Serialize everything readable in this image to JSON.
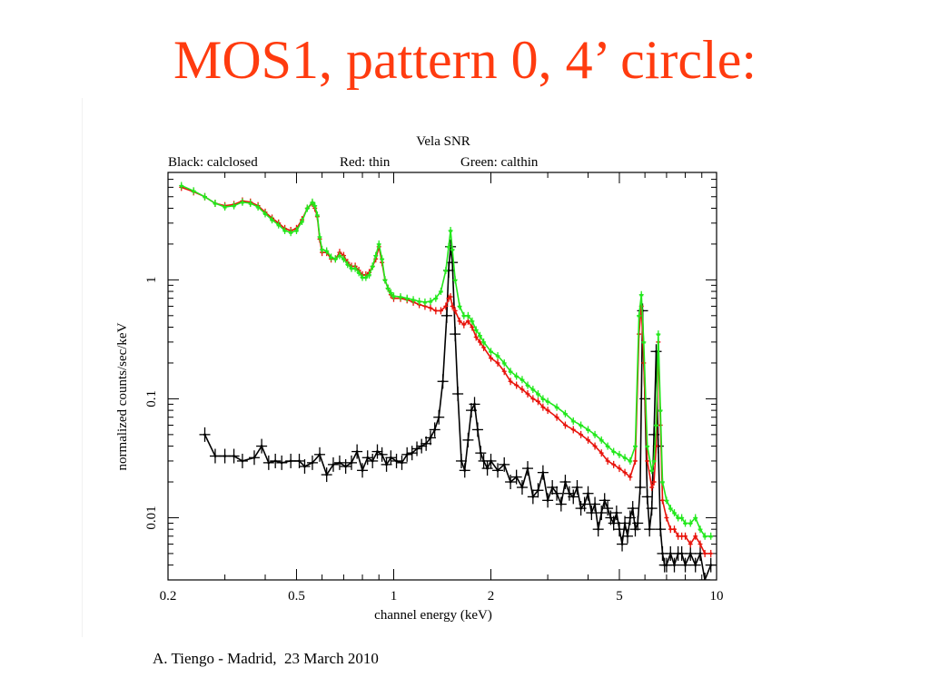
{
  "slide": {
    "title": "MOS1, pattern 0, 4’ circle:",
    "footer": "A. Tiengo - Madrid,  23 March 2010",
    "title_color": "#ff3b0f"
  },
  "chart_data": {
    "type": "line",
    "title": "Vela SNR",
    "legend_texts": [
      "Black: calclosed",
      "Red: thin",
      "Green: calthin"
    ],
    "legend_placement": "top",
    "xlabel": "channel energy (keV)",
    "ylabel": "normalized counts/sec/keV",
    "x_scale": "log",
    "y_scale": "log",
    "xlim": [
      0.2,
      10
    ],
    "ylim": [
      0.003,
      8
    ],
    "x_ticks": [
      {
        "value": 0.2,
        "label": "0.2"
      },
      {
        "value": 0.5,
        "label": "0.5"
      },
      {
        "value": 1,
        "label": "1"
      },
      {
        "value": 2,
        "label": "2"
      },
      {
        "value": 5,
        "label": "5"
      },
      {
        "value": 10,
        "label": "10"
      }
    ],
    "y_ticks": [
      {
        "value": 0.01,
        "label": "0.01"
      },
      {
        "value": 0.1,
        "label": "0.1"
      },
      {
        "value": 1,
        "label": "1"
      }
    ],
    "grid": false,
    "series": [
      {
        "color": "#000000",
        "marker": "cross",
        "x": [
          0.26,
          0.28,
          0.3,
          0.32,
          0.34,
          0.37,
          0.39,
          0.41,
          0.43,
          0.45,
          0.48,
          0.51,
          0.53,
          0.56,
          0.59,
          0.62,
          0.65,
          0.68,
          0.71,
          0.74,
          0.77,
          0.8,
          0.83,
          0.86,
          0.89,
          0.92,
          0.95,
          0.98,
          1.02,
          1.06,
          1.1,
          1.14,
          1.18,
          1.22,
          1.26,
          1.3,
          1.34,
          1.38,
          1.42,
          1.46,
          1.48,
          1.5,
          1.52,
          1.55,
          1.58,
          1.62,
          1.66,
          1.7,
          1.74,
          1.78,
          1.82,
          1.86,
          1.9,
          1.95,
          2.0,
          2.1,
          2.2,
          2.3,
          2.4,
          2.5,
          2.6,
          2.7,
          2.8,
          2.9,
          3.0,
          3.1,
          3.2,
          3.3,
          3.4,
          3.5,
          3.6,
          3.7,
          3.8,
          3.9,
          4.0,
          4.1,
          4.2,
          4.3,
          4.4,
          4.5,
          4.6,
          4.7,
          4.8,
          4.9,
          5.0,
          5.1,
          5.2,
          5.3,
          5.4,
          5.5,
          5.6,
          5.7,
          5.8,
          5.9,
          6.0,
          6.1,
          6.2,
          6.3,
          6.4,
          6.5,
          6.6,
          6.7,
          6.8,
          6.9,
          7.0,
          7.2,
          7.4,
          7.6,
          7.8,
          8.0,
          8.3,
          8.6,
          8.9,
          9.2,
          9.6
        ],
        "y": [
          0.05,
          0.033,
          0.033,
          0.033,
          0.03,
          0.032,
          0.04,
          0.029,
          0.03,
          0.029,
          0.03,
          0.03,
          0.027,
          0.029,
          0.034,
          0.023,
          0.028,
          0.029,
          0.027,
          0.029,
          0.036,
          0.025,
          0.032,
          0.03,
          0.036,
          0.034,
          0.028,
          0.032,
          0.03,
          0.029,
          0.034,
          0.035,
          0.038,
          0.04,
          0.042,
          0.047,
          0.055,
          0.07,
          0.14,
          0.5,
          1.2,
          1.9,
          1.4,
          0.35,
          0.11,
          0.03,
          0.025,
          0.045,
          0.08,
          0.09,
          0.055,
          0.035,
          0.03,
          0.026,
          0.03,
          0.025,
          0.028,
          0.02,
          0.022,
          0.018,
          0.026,
          0.015,
          0.017,
          0.024,
          0.014,
          0.018,
          0.016,
          0.013,
          0.02,
          0.016,
          0.015,
          0.018,
          0.012,
          0.013,
          0.016,
          0.011,
          0.013,
          0.008,
          0.011,
          0.014,
          0.012,
          0.01,
          0.009,
          0.011,
          0.008,
          0.006,
          0.009,
          0.007,
          0.01,
          0.012,
          0.008,
          0.009,
          0.018,
          0.55,
          0.1,
          0.015,
          0.008,
          0.012,
          0.05,
          0.25,
          0.04,
          0.008,
          0.005,
          0.004,
          0.004,
          0.005,
          0.004,
          0.005,
          0.005,
          0.004,
          0.005,
          0.004,
          0.005,
          0.003,
          0.004
        ]
      },
      {
        "color": "#e8140c",
        "marker": "cross",
        "x": [
          0.22,
          0.24,
          0.26,
          0.28,
          0.3,
          0.32,
          0.34,
          0.36,
          0.38,
          0.4,
          0.42,
          0.44,
          0.46,
          0.48,
          0.5,
          0.52,
          0.54,
          0.56,
          0.57,
          0.58,
          0.59,
          0.6,
          0.62,
          0.64,
          0.66,
          0.68,
          0.7,
          0.72,
          0.74,
          0.76,
          0.78,
          0.8,
          0.82,
          0.84,
          0.86,
          0.88,
          0.9,
          0.92,
          0.94,
          0.96,
          0.98,
          1.0,
          1.05,
          1.1,
          1.15,
          1.2,
          1.25,
          1.3,
          1.35,
          1.4,
          1.45,
          1.48,
          1.5,
          1.52,
          1.55,
          1.6,
          1.65,
          1.7,
          1.75,
          1.8,
          1.85,
          1.9,
          2.0,
          2.1,
          2.2,
          2.3,
          2.4,
          2.5,
          2.6,
          2.7,
          2.8,
          2.9,
          3.0,
          3.2,
          3.4,
          3.6,
          3.8,
          4.0,
          4.2,
          4.4,
          4.6,
          4.8,
          5.0,
          5.2,
          5.4,
          5.6,
          5.75,
          5.85,
          5.95,
          6.1,
          6.3,
          6.4,
          6.5,
          6.6,
          6.7,
          6.8,
          7.0,
          7.2,
          7.4,
          7.6,
          7.8,
          8.0,
          8.3,
          8.6,
          8.9,
          9.2,
          9.6
        ],
        "y": [
          6.0,
          5.5,
          5.0,
          4.4,
          4.2,
          4.3,
          4.6,
          4.5,
          4.2,
          3.7,
          3.3,
          3.0,
          2.7,
          2.6,
          2.7,
          3.2,
          4.0,
          4.4,
          4.0,
          3.4,
          2.2,
          1.7,
          1.7,
          1.5,
          1.5,
          1.7,
          1.6,
          1.4,
          1.3,
          1.3,
          1.2,
          1.1,
          1.1,
          1.15,
          1.3,
          1.5,
          1.9,
          1.4,
          1.0,
          0.85,
          0.75,
          0.7,
          0.7,
          0.68,
          0.65,
          0.62,
          0.6,
          0.58,
          0.55,
          0.55,
          0.6,
          0.7,
          0.72,
          0.6,
          0.55,
          0.45,
          0.42,
          0.45,
          0.4,
          0.33,
          0.3,
          0.27,
          0.22,
          0.2,
          0.17,
          0.14,
          0.13,
          0.12,
          0.11,
          0.1,
          0.095,
          0.085,
          0.08,
          0.07,
          0.06,
          0.055,
          0.05,
          0.045,
          0.04,
          0.035,
          0.03,
          0.028,
          0.026,
          0.024,
          0.022,
          0.03,
          0.35,
          0.6,
          0.2,
          0.03,
          0.018,
          0.02,
          0.04,
          0.3,
          0.06,
          0.014,
          0.01,
          0.008,
          0.008,
          0.007,
          0.007,
          0.007,
          0.006,
          0.007,
          0.006,
          0.005,
          0.005
        ]
      },
      {
        "color": "#22e81c",
        "marker": "triangle",
        "x": [
          0.22,
          0.24,
          0.26,
          0.28,
          0.3,
          0.32,
          0.34,
          0.36,
          0.38,
          0.4,
          0.42,
          0.44,
          0.46,
          0.48,
          0.5,
          0.52,
          0.54,
          0.56,
          0.57,
          0.58,
          0.59,
          0.6,
          0.62,
          0.64,
          0.66,
          0.68,
          0.7,
          0.72,
          0.74,
          0.76,
          0.78,
          0.8,
          0.82,
          0.84,
          0.86,
          0.88,
          0.9,
          0.92,
          0.94,
          0.96,
          0.98,
          1.0,
          1.05,
          1.1,
          1.15,
          1.2,
          1.25,
          1.3,
          1.35,
          1.4,
          1.45,
          1.48,
          1.5,
          1.52,
          1.55,
          1.6,
          1.65,
          1.7,
          1.75,
          1.8,
          1.85,
          1.9,
          2.0,
          2.1,
          2.2,
          2.3,
          2.4,
          2.5,
          2.6,
          2.7,
          2.8,
          2.9,
          3.0,
          3.2,
          3.4,
          3.6,
          3.8,
          4.0,
          4.2,
          4.4,
          4.6,
          4.8,
          5.0,
          5.2,
          5.4,
          5.6,
          5.75,
          5.85,
          5.95,
          6.1,
          6.3,
          6.4,
          6.5,
          6.6,
          6.7,
          6.8,
          7.0,
          7.2,
          7.4,
          7.6,
          7.8,
          8.0,
          8.3,
          8.6,
          8.9,
          9.2,
          9.6
        ],
        "y": [
          6.2,
          5.6,
          5.0,
          4.4,
          4.1,
          4.2,
          4.5,
          4.4,
          4.1,
          3.6,
          3.2,
          2.9,
          2.6,
          2.5,
          2.6,
          3.1,
          4.0,
          4.5,
          4.2,
          3.5,
          2.3,
          1.8,
          1.75,
          1.55,
          1.5,
          1.6,
          1.5,
          1.35,
          1.25,
          1.25,
          1.15,
          1.05,
          1.05,
          1.1,
          1.3,
          1.6,
          2.0,
          1.5,
          1.0,
          0.85,
          0.78,
          0.73,
          0.72,
          0.7,
          0.68,
          0.66,
          0.65,
          0.66,
          0.7,
          0.8,
          1.2,
          1.9,
          2.6,
          1.8,
          1.0,
          0.6,
          0.5,
          0.5,
          0.45,
          0.38,
          0.34,
          0.3,
          0.25,
          0.23,
          0.2,
          0.17,
          0.155,
          0.145,
          0.13,
          0.12,
          0.11,
          0.1,
          0.095,
          0.085,
          0.075,
          0.065,
          0.06,
          0.055,
          0.05,
          0.045,
          0.04,
          0.036,
          0.034,
          0.032,
          0.03,
          0.04,
          0.5,
          0.75,
          0.3,
          0.04,
          0.025,
          0.03,
          0.06,
          0.35,
          0.08,
          0.02,
          0.014,
          0.012,
          0.011,
          0.01,
          0.01,
          0.009,
          0.009,
          0.01,
          0.008,
          0.007,
          0.007
        ]
      }
    ]
  }
}
